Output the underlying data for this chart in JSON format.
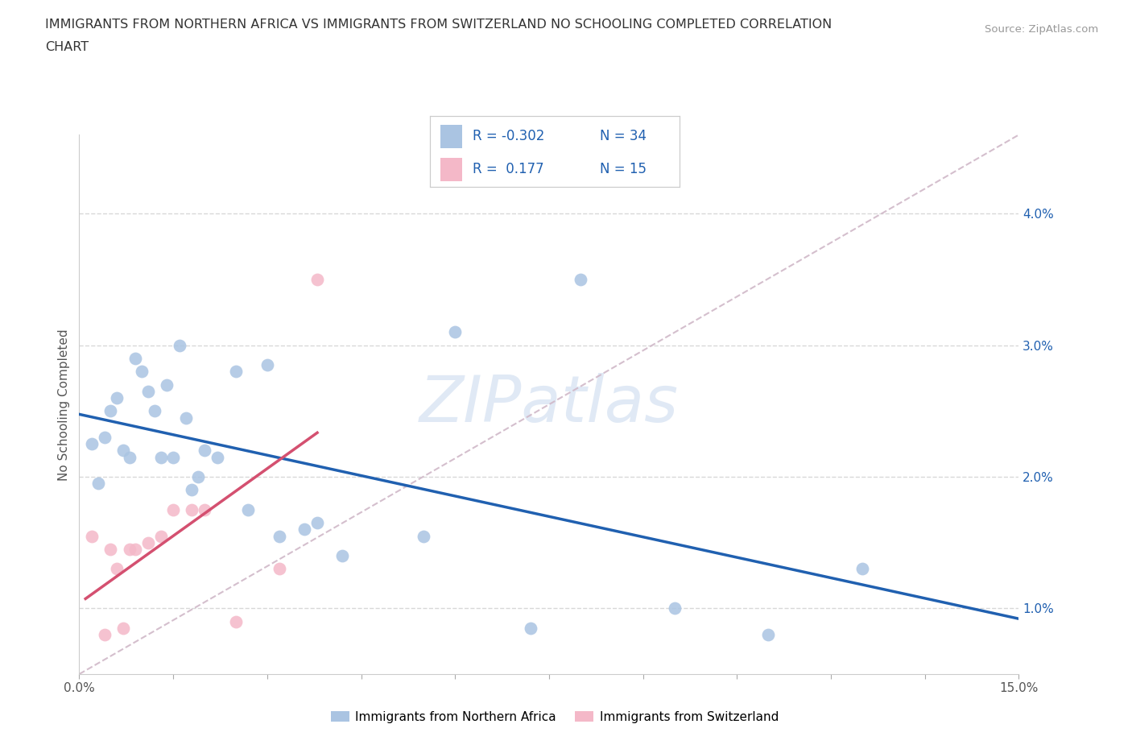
{
  "title_line1": "IMMIGRANTS FROM NORTHERN AFRICA VS IMMIGRANTS FROM SWITZERLAND NO SCHOOLING COMPLETED CORRELATION",
  "title_line2": "CHART",
  "source": "Source: ZipAtlas.com",
  "ylabel": "No Schooling Completed",
  "xlim": [
    0.0,
    0.15
  ],
  "ylim": [
    0.005,
    0.046
  ],
  "blue_scatter_x": [
    0.002,
    0.003,
    0.004,
    0.005,
    0.006,
    0.007,
    0.008,
    0.009,
    0.01,
    0.011,
    0.012,
    0.013,
    0.014,
    0.015,
    0.016,
    0.017,
    0.018,
    0.019,
    0.02,
    0.022,
    0.025,
    0.027,
    0.03,
    0.032,
    0.036,
    0.038,
    0.042,
    0.055,
    0.06,
    0.072,
    0.08,
    0.095,
    0.11,
    0.125
  ],
  "blue_scatter_y": [
    0.0225,
    0.0195,
    0.023,
    0.025,
    0.026,
    0.022,
    0.0215,
    0.029,
    0.028,
    0.0265,
    0.025,
    0.0215,
    0.027,
    0.0215,
    0.03,
    0.0245,
    0.019,
    0.02,
    0.022,
    0.0215,
    0.028,
    0.0175,
    0.0285,
    0.0155,
    0.016,
    0.0165,
    0.014,
    0.0155,
    0.031,
    0.0085,
    0.035,
    0.01,
    0.008,
    0.013
  ],
  "pink_scatter_x": [
    0.002,
    0.004,
    0.005,
    0.006,
    0.007,
    0.008,
    0.009,
    0.011,
    0.013,
    0.015,
    0.018,
    0.02,
    0.025,
    0.032,
    0.038
  ],
  "pink_scatter_y": [
    0.0155,
    0.008,
    0.0145,
    0.013,
    0.0085,
    0.0145,
    0.0145,
    0.015,
    0.0155,
    0.0175,
    0.0175,
    0.0175,
    0.009,
    0.013,
    0.035
  ],
  "blue_R": -0.302,
  "blue_N": 34,
  "pink_R": 0.177,
  "pink_N": 15,
  "blue_color": "#aac4e2",
  "pink_color": "#f4b8c8",
  "blue_line_color": "#2060b0",
  "pink_line_color": "#d45070",
  "diag_line_color": "#d0b8c8",
  "background_color": "#ffffff",
  "legend_R_color": "#2060b0",
  "legend_N_color": "#2060b0",
  "ytick_vals": [
    0.01,
    0.02,
    0.03,
    0.04
  ],
  "ytick_labels": [
    "1.0%",
    "2.0%",
    "3.0%",
    "4.0%"
  ],
  "xtick_vals": [
    0.0,
    0.015,
    0.03,
    0.045,
    0.06,
    0.075,
    0.09,
    0.105,
    0.12,
    0.135,
    0.15
  ],
  "watermark": "ZIPatlas",
  "legend_label_blue": "Immigrants from Northern Africa",
  "legend_label_pink": "Immigrants from Switzerland"
}
